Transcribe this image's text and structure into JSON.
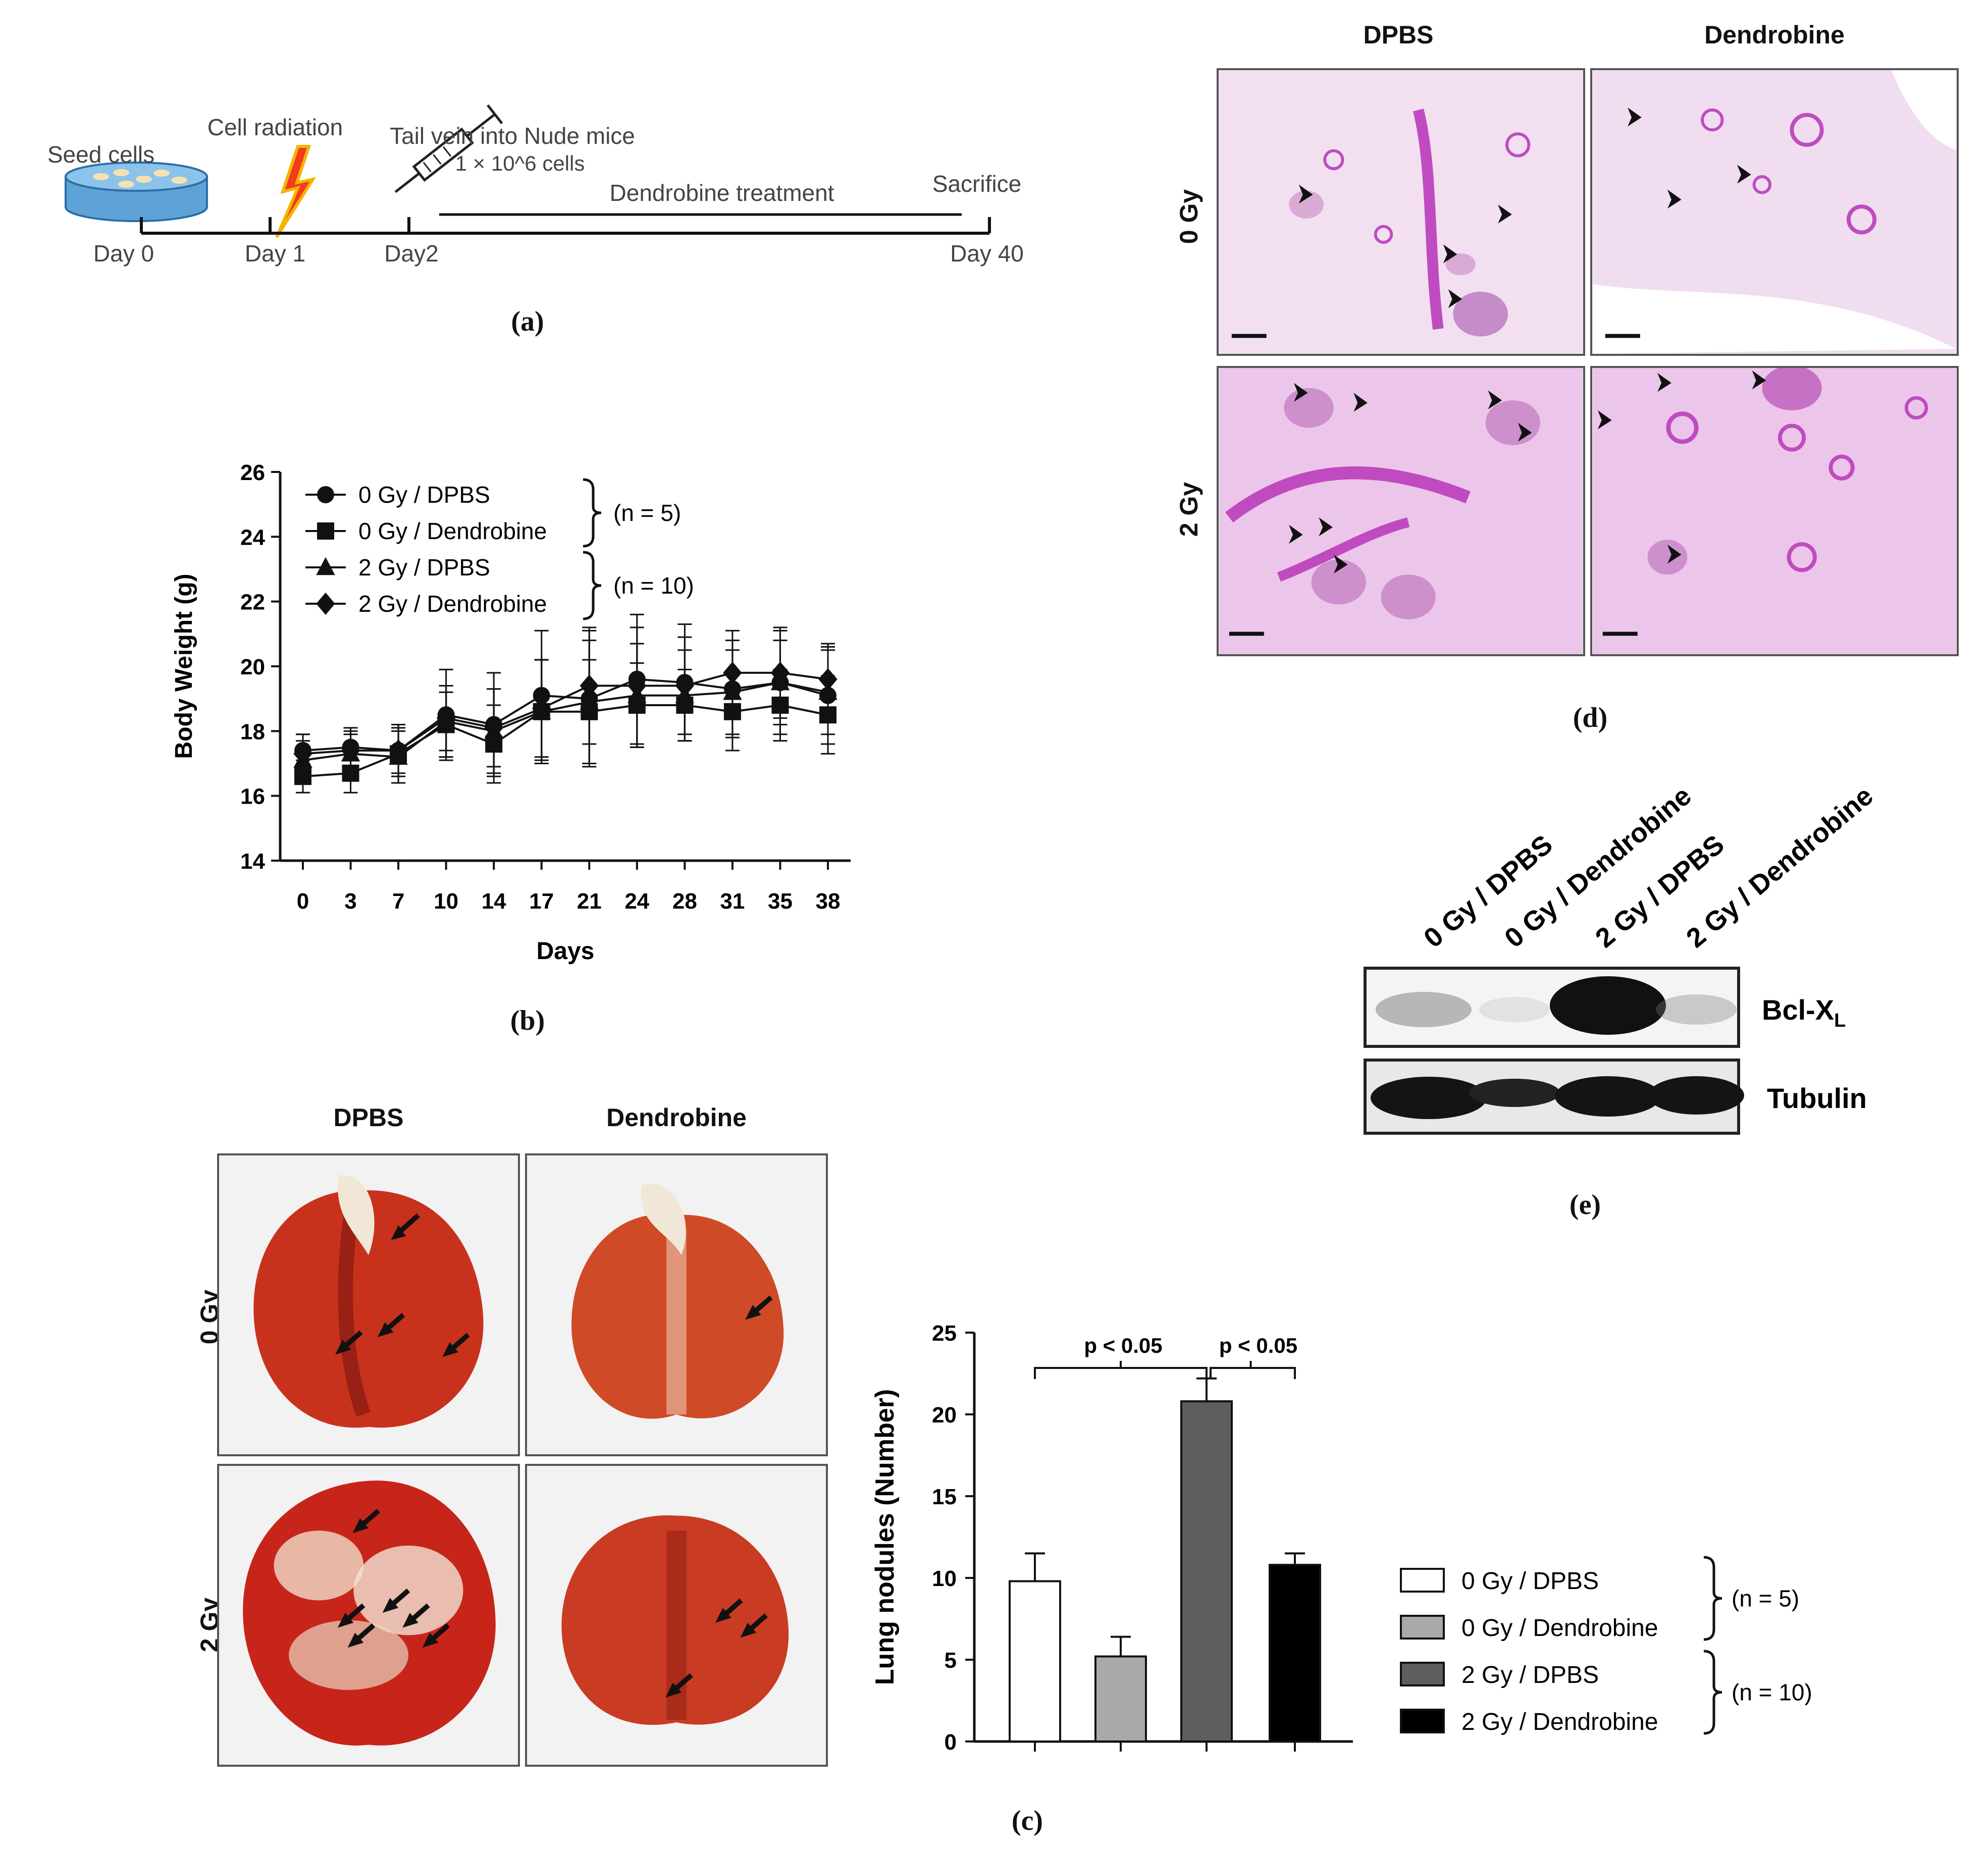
{
  "colors": {
    "he_stain": "#e9a8e3",
    "he_dense": "#c04bc0",
    "lung_red": "#c8321d",
    "arrow": "#111111",
    "bar_0gy_dpbs": "#ffffff",
    "bar_0gy_dendrobine": "#a9a9a9",
    "bar_2gy_dpbs": "#5e5e5e",
    "bar_2gy_dendrobine": "#000000"
  },
  "panel_a": {
    "label": "(a)",
    "seed_cells": "Seed cells",
    "cell_radiation": "Cell radiation",
    "tail_vein": "Tail vein into Nude mice",
    "cells_count": "1 × 10^6 cells",
    "dendrobine_treatment": "Dendrobine treatment",
    "sacrifice": "Sacrifice",
    "days": [
      "Day 0",
      "Day 1",
      "Day2",
      "Day 40"
    ],
    "icons": [
      "petri-dish-icon",
      "lightning-icon",
      "syringe-icon"
    ]
  },
  "panel_b": {
    "label": "(b)",
    "legend_groups": [
      "(n =  5)",
      "(n = 10)"
    ]
  },
  "panel_c": {
    "label": "(c)",
    "col_dpbs": "DPBS",
    "col_dendrobine": "Dendrobine",
    "row_0gy": "0 Gy",
    "row_2gy": "2 Gy",
    "sig_left": "p < 0.05",
    "sig_right": "p < 0.05",
    "legend_groups": [
      "(n =  5)",
      "(n = 10)"
    ]
  },
  "panel_d": {
    "label": "(d)",
    "col_dpbs": "DPBS",
    "col_dendrobine": "Dendrobine",
    "row_0gy": "0 Gy",
    "row_2gy": "2 Gy"
  },
  "panel_e": {
    "label": "(e)",
    "lanes": [
      "0 Gy / DPBS",
      "0 Gy / Dendrobine",
      "2 Gy / DPBS",
      "2 Gy / Dendrobine"
    ],
    "band1_label": "Bcl-X",
    "band1_sub": "L",
    "band2_label": "Tubulin"
  },
  "chart_data": [
    {
      "type": "line",
      "xlabel": "Days",
      "ylabel": "Body Weight (g)",
      "categories": [
        "0",
        "3",
        "7",
        "10",
        "14",
        "17",
        "21",
        "24",
        "28",
        "31",
        "35",
        "38"
      ],
      "ylim": [
        14,
        26
      ],
      "yticks": [
        14,
        16,
        18,
        20,
        22,
        24,
        26
      ],
      "grid": false,
      "legend_position": "top-left",
      "series": [
        {
          "name": "0 Gy / DPBS",
          "marker": "circle",
          "values": [
            17.4,
            17.5,
            17.4,
            18.5,
            18.2,
            19.1,
            19.0,
            19.6,
            19.5,
            19.3,
            19.5,
            19.1
          ],
          "errors": [
            0.5,
            0.6,
            0.7,
            1.4,
            1.6,
            2.0,
            2.1,
            2.0,
            1.8,
            1.5,
            1.6,
            1.5
          ]
        },
        {
          "name": "0 Gy / Dendrobine",
          "marker": "square",
          "values": [
            16.6,
            16.7,
            17.3,
            18.2,
            17.6,
            18.6,
            18.6,
            18.8,
            18.8,
            18.6,
            18.8,
            18.5
          ],
          "errors": [
            0.5,
            0.6,
            0.9,
            1.0,
            1.2,
            1.6,
            1.6,
            1.3,
            1.1,
            1.2,
            1.1,
            1.2
          ]
        },
        {
          "name": "2 Gy / DPBS",
          "marker": "triangle",
          "values": [
            17.1,
            17.3,
            17.2,
            18.3,
            18.0,
            18.6,
            18.9,
            19.1,
            19.1,
            19.2,
            19.5,
            19.2
          ],
          "errors": [
            0.6,
            0.6,
            0.8,
            1.1,
            1.3,
            1.6,
            1.9,
            1.6,
            1.4,
            1.3,
            1.3,
            1.3
          ]
        },
        {
          "name": "2 Gy / Dendrobine",
          "marker": "diamond",
          "values": [
            17.3,
            17.4,
            17.4,
            18.4,
            18.1,
            18.7,
            19.4,
            19.4,
            19.4,
            19.8,
            19.8,
            19.6
          ],
          "errors": [
            0.6,
            0.6,
            0.8,
            1.0,
            1.2,
            1.5,
            1.8,
            1.8,
            1.5,
            1.3,
            1.4,
            1.1
          ]
        }
      ]
    },
    {
      "type": "bar",
      "ylabel": "Lung nodules (Number)",
      "categories": [
        "0 Gy / DPBS",
        "0 Gy / Dendrobine",
        "2 Gy / DPBS",
        "2 Gy / Dendrobine"
      ],
      "values": [
        9.8,
        5.2,
        20.8,
        10.8
      ],
      "errors": [
        1.7,
        1.2,
        1.4,
        0.7
      ],
      "ylim": [
        0,
        25
      ],
      "yticks": [
        0,
        5,
        10,
        15,
        20,
        25
      ],
      "grid": false,
      "legend_position": "right"
    }
  ]
}
